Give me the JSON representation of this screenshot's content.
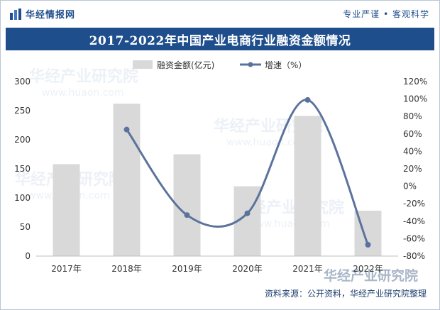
{
  "header": {
    "brand_name": "华经情报网",
    "slogan": "专业严谨 • 客观科学",
    "brand_logo_icon": "huajing-logo-icon"
  },
  "source_note": "资料来源：公开资料，华经产业研究院整理",
  "watermark": {
    "text": "华经产业研究院",
    "url": "www.huaon.com"
  },
  "colors": {
    "brand": "#1f4e8c",
    "bar": "#d9d9d9",
    "line": "#5b739c"
  },
  "chart_data": {
    "type": "bar",
    "title": "2017-2022年中国产业电商行业融资金额情况",
    "categories": [
      "2017年",
      "2018年",
      "2019年",
      "2020年",
      "2021年",
      "2022年"
    ],
    "series": [
      {
        "name": "融资金额(亿元)",
        "type": "bar",
        "axis": "left",
        "values": [
          158,
          262,
          175,
          120,
          241,
          78
        ]
      },
      {
        "name": "增速（%）",
        "type": "line",
        "axis": "right",
        "values": [
          null,
          65,
          -33,
          -31,
          99,
          -67
        ]
      }
    ],
    "left_axis": {
      "ylim": [
        0,
        300
      ],
      "ticks": [
        0,
        50,
        100,
        150,
        200,
        250,
        300
      ]
    },
    "right_axis": {
      "ylim": [
        -80,
        120
      ],
      "ticks": [
        "-80%",
        "-60%",
        "-40%",
        "-20%",
        "0%",
        "20%",
        "40%",
        "60%",
        "80%",
        "100%",
        "120%"
      ]
    },
    "legend_position": "top-center",
    "grid": false,
    "line_smooth": true
  }
}
